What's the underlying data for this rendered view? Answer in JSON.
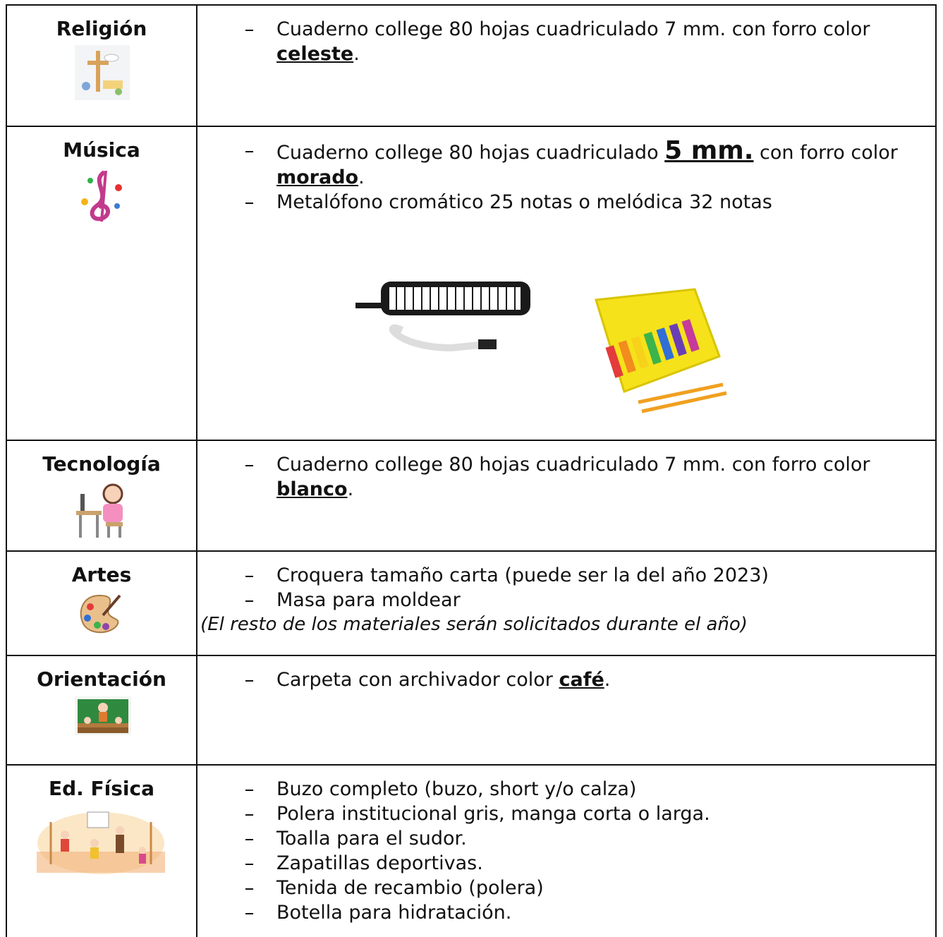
{
  "rows": [
    {
      "subject": "Religión",
      "items": [
        [
          "Cuaderno college 80 hojas cuadriculado 7 mm. con forro color ",
          {
            "text": "celeste",
            "style": "bold-underline"
          },
          "."
        ]
      ]
    },
    {
      "subject": "Música",
      "items": [
        [
          "Cuaderno college 80 hojas cuadriculado ",
          {
            "text": "5 mm.",
            "style": "large-bold-underline"
          },
          " con forro color ",
          {
            "text": "morado",
            "style": "bold-underline"
          },
          "."
        ],
        [
          "Metalófono cromático 25 notas o melódica 32 notas"
        ]
      ]
    },
    {
      "subject": "Tecnología",
      "items": [
        [
          "Cuaderno college 80 hojas cuadriculado 7 mm. con forro color ",
          {
            "text": "blanco",
            "style": "bold-underline"
          },
          "."
        ]
      ]
    },
    {
      "subject": "Artes",
      "items": [
        [
          "Croquera tamaño carta (puede ser la del año 2023)"
        ],
        [
          "Masa para moldear"
        ]
      ],
      "note": "(El resto de los materiales serán solicitados durante el año)"
    },
    {
      "subject": "Orientación",
      "items": [
        [
          "Carpeta con archivador color ",
          {
            "text": "café",
            "style": "bold-underline"
          },
          "."
        ]
      ]
    },
    {
      "subject": "Ed. Física",
      "items": [
        [
          "Buzo completo (buzo, short y/o calza)"
        ],
        [
          "Polera institucional gris, manga corta o larga."
        ],
        [
          "Toalla para el sudor."
        ],
        [
          "Zapatillas deportivas."
        ],
        [
          "Tenida de recambio (polera)"
        ],
        [
          "Botella para hidratación."
        ]
      ]
    }
  ]
}
